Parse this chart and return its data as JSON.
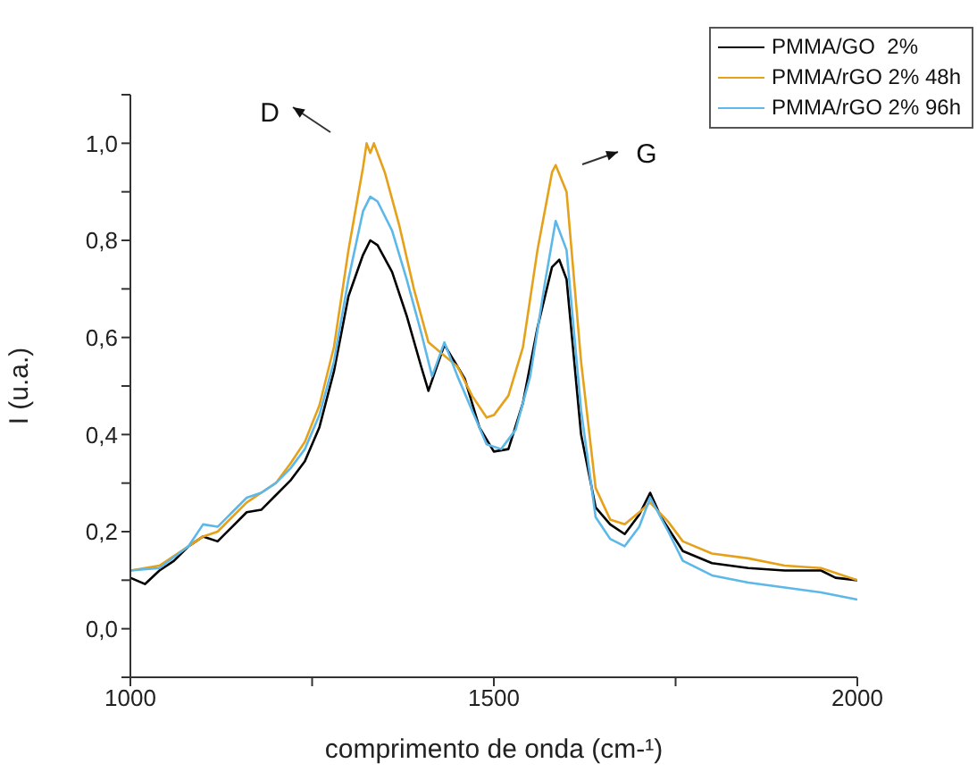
{
  "chart_data": {
    "type": "line",
    "xlabel": "comprimento de onda (cm-¹)",
    "ylabel": "I (u.a.)",
    "xlim": [
      1000,
      2000
    ],
    "xticks": [
      1000,
      {
        "value": 1250,
        "label": null
      },
      1500,
      {
        "value": 1750,
        "label": null
      },
      2000
    ],
    "ylim": [
      -0.1,
      1.1
    ],
    "yticks": [
      {
        "value": -0.1,
        "label": null
      },
      {
        "value": 0,
        "label": "0,0"
      },
      {
        "value": 0.1,
        "label": null
      },
      {
        "value": 0.2,
        "label": "0,2"
      },
      {
        "value": 0.3,
        "label": null
      },
      {
        "value": 0.4,
        "label": "0,4"
      },
      {
        "value": 0.5,
        "label": null
      },
      {
        "value": 0.6,
        "label": "0,6"
      },
      {
        "value": 0.7,
        "label": null
      },
      {
        "value": 0.8,
        "label": "0,8"
      },
      {
        "value": 0.9,
        "label": null
      },
      {
        "value": 1.0,
        "label": "1,0"
      },
      {
        "value": 1.1,
        "label": null
      }
    ],
    "legend": "top right",
    "marker": "none",
    "line_style": "solid",
    "annotations": [
      "D",
      "G"
    ],
    "series": [
      {
        "name": "PMMA/GO  2%",
        "color": "#000000",
        "x": [
          1000,
          1020,
          1040,
          1060,
          1080,
          1100,
          1120,
          1140,
          1160,
          1180,
          1200,
          1220,
          1240,
          1260,
          1280,
          1300,
          1320,
          1330,
          1340,
          1360,
          1380,
          1400,
          1410,
          1432,
          1460,
          1480,
          1500,
          1520,
          1540,
          1560,
          1580,
          1590,
          1600,
          1620,
          1640,
          1660,
          1680,
          1700,
          1715,
          1730,
          1760,
          1800,
          1850,
          1900,
          1950,
          1970,
          2000
        ],
        "values": [
          0.105,
          0.092,
          0.12,
          0.14,
          0.17,
          0.19,
          0.18,
          0.21,
          0.24,
          0.245,
          0.275,
          0.305,
          0.345,
          0.415,
          0.53,
          0.685,
          0.77,
          0.8,
          0.79,
          0.735,
          0.645,
          0.54,
          0.49,
          0.585,
          0.515,
          0.415,
          0.365,
          0.37,
          0.465,
          0.62,
          0.745,
          0.76,
          0.72,
          0.4,
          0.25,
          0.215,
          0.195,
          0.235,
          0.28,
          0.23,
          0.16,
          0.135,
          0.125,
          0.12,
          0.12,
          0.105,
          0.1
        ]
      },
      {
        "name": "PMMA/rGO 2% 48h",
        "color": "#e6a11a",
        "x": [
          1000,
          1040,
          1080,
          1100,
          1120,
          1160,
          1180,
          1200,
          1220,
          1240,
          1260,
          1280,
          1300,
          1320,
          1325,
          1330,
          1335,
          1350,
          1370,
          1390,
          1410,
          1430,
          1450,
          1470,
          1490,
          1500,
          1520,
          1540,
          1560,
          1580,
          1585,
          1600,
          1620,
          1640,
          1660,
          1680,
          1700,
          1715,
          1740,
          1760,
          1800,
          1850,
          1900,
          1950,
          2000
        ],
        "values": [
          0.12,
          0.13,
          0.17,
          0.19,
          0.2,
          0.26,
          0.28,
          0.3,
          0.34,
          0.385,
          0.46,
          0.58,
          0.78,
          0.95,
          1.0,
          0.98,
          1.0,
          0.94,
          0.83,
          0.7,
          0.59,
          0.565,
          0.54,
          0.48,
          0.435,
          0.44,
          0.48,
          0.58,
          0.78,
          0.94,
          0.955,
          0.9,
          0.55,
          0.29,
          0.225,
          0.215,
          0.24,
          0.26,
          0.22,
          0.18,
          0.155,
          0.145,
          0.13,
          0.125,
          0.1
        ]
      },
      {
        "name": "PMMA/rGO 2% 96h",
        "color": "#5bb8e8",
        "x": [
          1000,
          1040,
          1080,
          1100,
          1120,
          1140,
          1160,
          1180,
          1200,
          1220,
          1240,
          1260,
          1280,
          1300,
          1320,
          1330,
          1340,
          1360,
          1380,
          1400,
          1415,
          1432,
          1450,
          1470,
          1490,
          1510,
          1530,
          1550,
          1570,
          1585,
          1600,
          1620,
          1640,
          1660,
          1680,
          1700,
          1715,
          1740,
          1760,
          1800,
          1850,
          1900,
          1950,
          2000
        ],
        "values": [
          0.12,
          0.125,
          0.17,
          0.215,
          0.21,
          0.24,
          0.27,
          0.28,
          0.3,
          0.33,
          0.37,
          0.44,
          0.55,
          0.72,
          0.86,
          0.89,
          0.88,
          0.82,
          0.72,
          0.61,
          0.52,
          0.59,
          0.52,
          0.45,
          0.38,
          0.37,
          0.41,
          0.52,
          0.71,
          0.84,
          0.78,
          0.45,
          0.23,
          0.185,
          0.17,
          0.21,
          0.27,
          0.2,
          0.14,
          0.11,
          0.095,
          0.085,
          0.075,
          0.06
        ]
      }
    ]
  }
}
